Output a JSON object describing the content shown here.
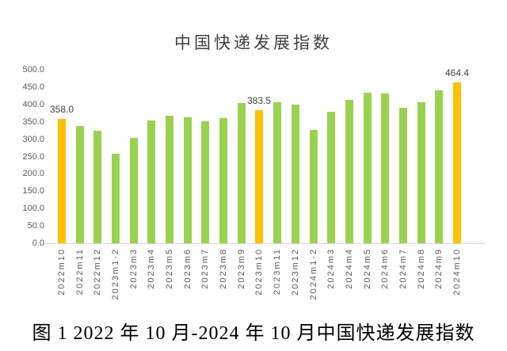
{
  "title": "中国快递发展指数",
  "caption": "图 1 2022 年 10 月-2024 年 10 月中国快递发展指数",
  "colors": {
    "bar_green": "#9AD250",
    "bar_orange": "#FFC000",
    "axis_text": "#595959",
    "data_label_text": "#404040",
    "axis_line": "#D6D6D6",
    "background": "#FFFFFF"
  },
  "chart_data": {
    "type": "bar",
    "title": "中国快递发展指数",
    "xlabel": "",
    "ylabel": "",
    "grid": false,
    "legend_position": "none",
    "ylim": [
      0,
      500
    ],
    "ytick_step": 50,
    "ytick_labels": [
      "0.0",
      "50.0",
      "100.0",
      "150.0",
      "200.0",
      "250.0",
      "300.0",
      "350.0",
      "400.0",
      "450.0",
      "500.0"
    ],
    "categories": [
      "2022m10",
      "2022m11",
      "2022m12",
      "2023m1-2",
      "2023m3",
      "2023m4",
      "2023m5",
      "2023m6",
      "2023m7",
      "2023m8",
      "2023m9",
      "2023m10",
      "2023m11",
      "2023m12",
      "2024m1-2",
      "2024m3",
      "2024m4",
      "2024m5",
      "2024m6",
      "2024m7",
      "2024m8",
      "2024m9",
      "2024m10"
    ],
    "values": [
      358.0,
      337,
      324,
      259,
      304,
      355,
      368,
      364,
      351,
      360,
      404,
      383.5,
      406,
      399,
      327,
      379,
      413,
      434,
      431,
      391,
      406,
      440,
      464.4
    ],
    "highlight_indices": [
      0,
      11,
      22
    ],
    "data_labels": [
      {
        "index": 0,
        "text": "358.0"
      },
      {
        "index": 11,
        "text": "383.5"
      },
      {
        "index": 22,
        "text": "464.4"
      }
    ]
  }
}
